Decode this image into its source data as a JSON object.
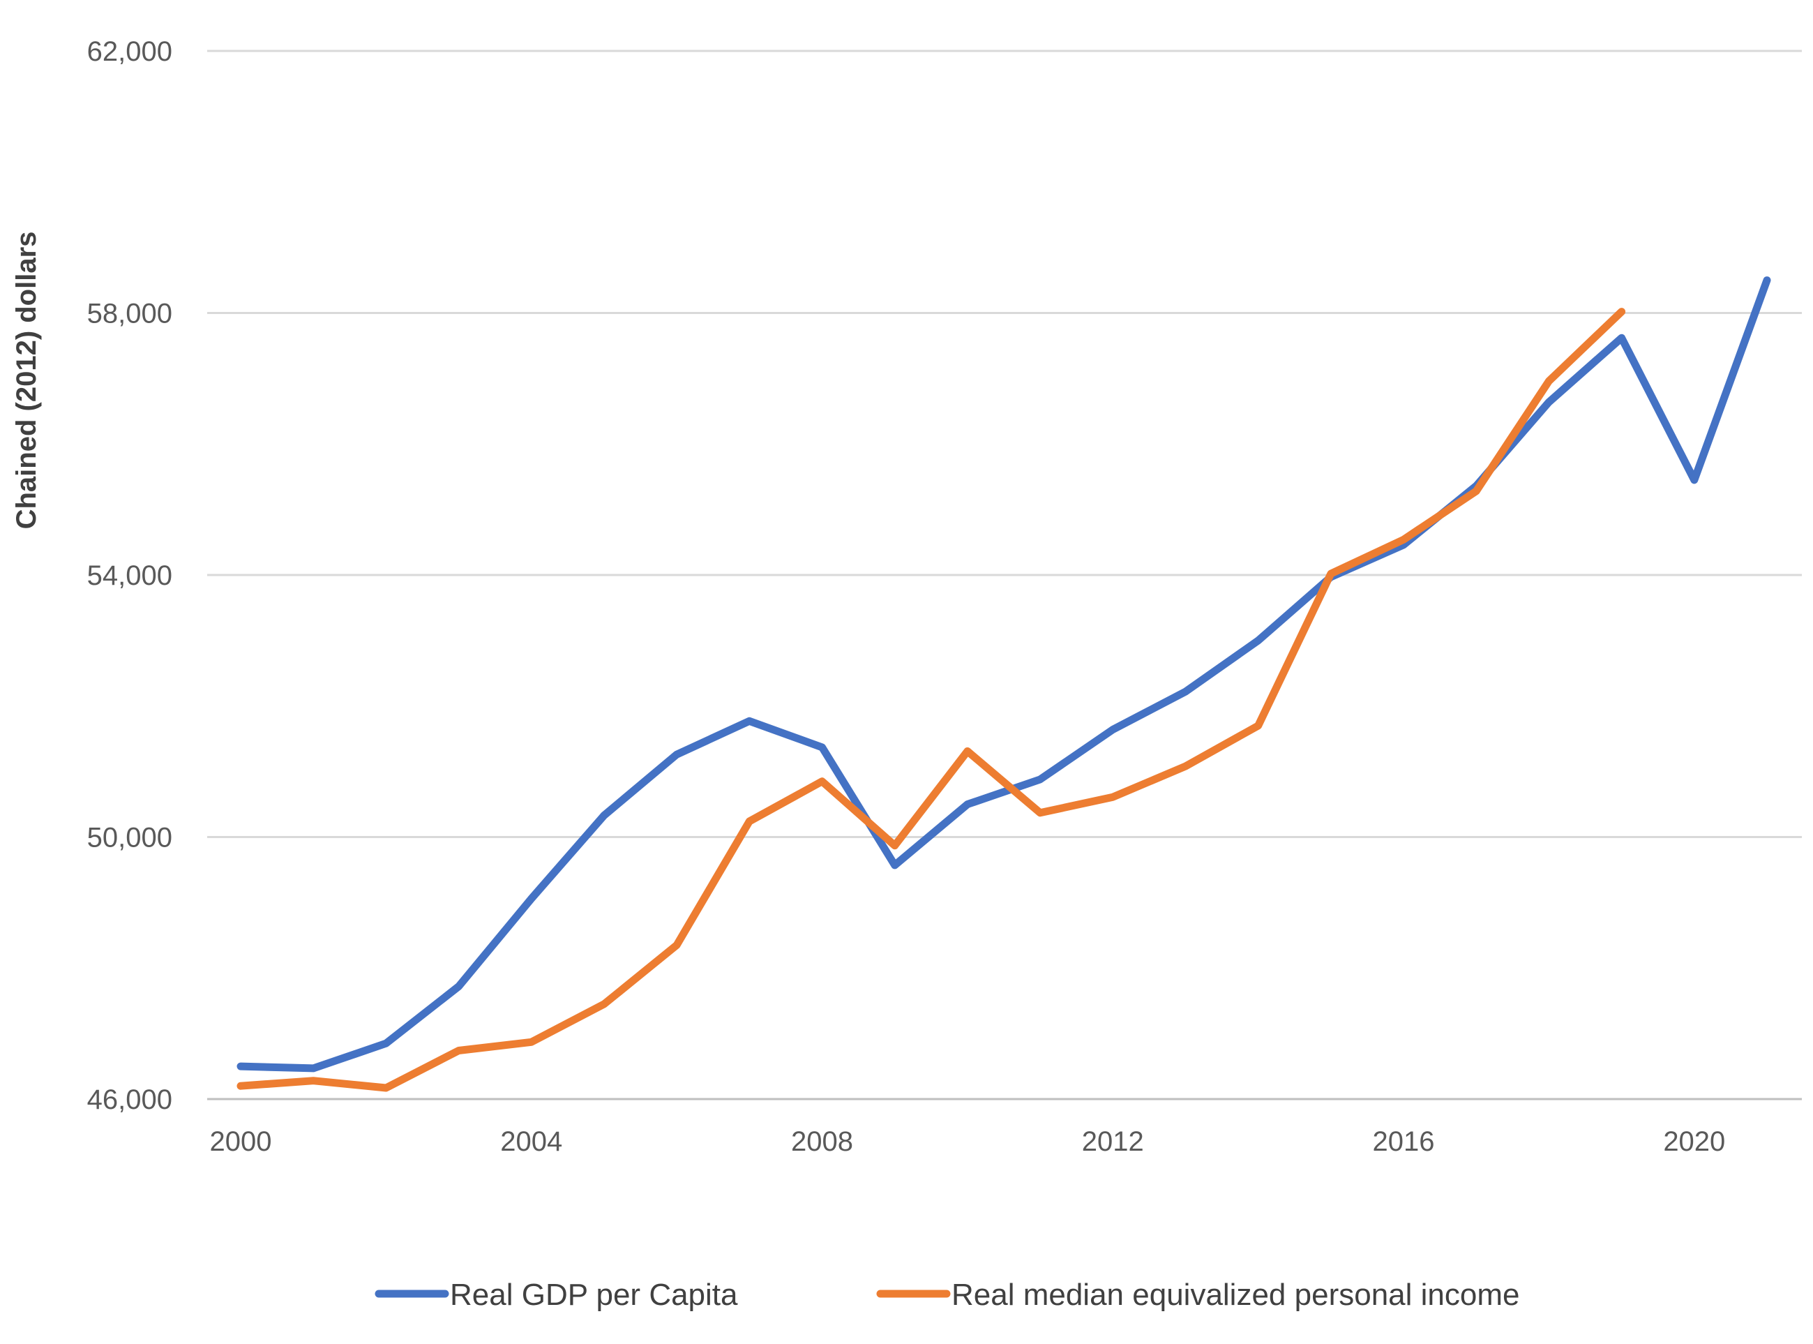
{
  "chart_data": {
    "type": "line",
    "title": "",
    "xlabel": "",
    "ylabel": "Chained (2012) dollars",
    "ylim": [
      46000,
      62000
    ],
    "xlim": [
      2000,
      2021
    ],
    "yticks": [
      "46,000",
      "50,000",
      "54,000",
      "58,000",
      "62,000"
    ],
    "ytick_values": [
      46000,
      50000,
      54000,
      58000,
      62000
    ],
    "xticks": [
      "2000",
      "2004",
      "2008",
      "2012",
      "2016",
      "2020"
    ],
    "xtick_values": [
      2000,
      2004,
      2008,
      2012,
      2016,
      2020
    ],
    "grid": true,
    "legend_position": "bottom",
    "series": [
      {
        "name": "Real GDP per Capita",
        "color": "#4472C4",
        "x": [
          2000,
          2001,
          2002,
          2003,
          2004,
          2005,
          2006,
          2007,
          2008,
          2009,
          2010,
          2011,
          2012,
          2013,
          2014,
          2015,
          2016,
          2017,
          2018,
          2019,
          2020,
          2021
        ],
        "values": [
          46500,
          46470,
          46850,
          47720,
          49060,
          50330,
          51260,
          51770,
          51370,
          49570,
          50500,
          50880,
          51640,
          52220,
          53000,
          53970,
          54460,
          55360,
          56640,
          57620,
          55450,
          58500
        ]
      },
      {
        "name": "Real median equivalized personal income",
        "color": "#ED7D31",
        "x": [
          2000,
          2001,
          2002,
          2003,
          2004,
          2005,
          2006,
          2007,
          2008,
          2009,
          2010,
          2011,
          2012,
          2013,
          2014,
          2015,
          2016,
          2017,
          2018,
          2019
        ],
        "values": [
          46200,
          46280,
          46170,
          46740,
          46870,
          47450,
          48350,
          50240,
          50850,
          49870,
          51310,
          50370,
          50610,
          51080,
          51700,
          54020,
          54540,
          55280,
          56960,
          58020
        ]
      }
    ]
  }
}
